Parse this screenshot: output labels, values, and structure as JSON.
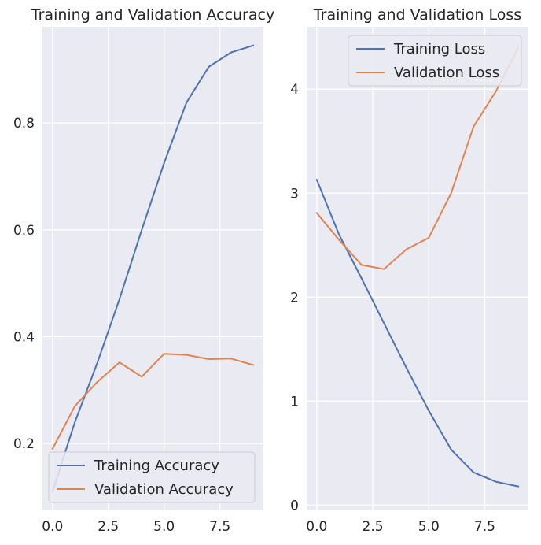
{
  "chart_data": [
    {
      "type": "line",
      "title": "Training and Validation Accuracy",
      "xlabel": "",
      "ylabel": "",
      "xlim": [
        -0.45,
        9.45
      ],
      "ylim": [
        0.075,
        0.98
      ],
      "x_ticks": [
        0.0,
        2.5,
        5.0,
        7.5
      ],
      "x_tick_labels": [
        "0.0",
        "2.5",
        "5.0",
        "7.5"
      ],
      "y_ticks": [
        0.2,
        0.4,
        0.6,
        0.8
      ],
      "y_tick_labels": [
        "0.2",
        "0.4",
        "0.6",
        "0.8"
      ],
      "grid": true,
      "legend_placement": "lower-left",
      "x": [
        0,
        1,
        2,
        3,
        4,
        5,
        6,
        7,
        8,
        9
      ],
      "series": [
        {
          "name": "Training Accuracy",
          "color": "#4c72b0",
          "values": [
            0.11,
            0.24,
            0.35,
            0.47,
            0.6,
            0.725,
            0.838,
            0.905,
            0.932,
            0.945
          ]
        },
        {
          "name": "Validation Accuracy",
          "color": "#dd8452",
          "values": [
            0.19,
            0.27,
            0.315,
            0.352,
            0.325,
            0.368,
            0.366,
            0.358,
            0.359,
            0.347
          ]
        }
      ]
    },
    {
      "type": "line",
      "title": "Training and Validation Loss",
      "xlabel": "",
      "ylabel": "",
      "xlim": [
        -0.45,
        9.45
      ],
      "ylim": [
        -0.05,
        4.6
      ],
      "x_ticks": [
        0.0,
        2.5,
        5.0,
        7.5
      ],
      "x_tick_labels": [
        "0.0",
        "2.5",
        "5.0",
        "7.5"
      ],
      "y_ticks": [
        0,
        1,
        2,
        3,
        4
      ],
      "y_tick_labels": [
        "0",
        "1",
        "2",
        "3",
        "4"
      ],
      "grid": true,
      "legend_placement": "upper-right",
      "x": [
        0,
        1,
        2,
        3,
        4,
        5,
        6,
        7,
        8,
        9
      ],
      "series": [
        {
          "name": "Training Loss",
          "color": "#4c72b0",
          "values": [
            3.13,
            2.6,
            2.18,
            1.75,
            1.32,
            0.91,
            0.535,
            0.315,
            0.225,
            0.18
          ]
        },
        {
          "name": "Validation Loss",
          "color": "#dd8452",
          "values": [
            2.81,
            2.55,
            2.31,
            2.27,
            2.46,
            2.57,
            3.0,
            3.64,
            3.98,
            4.4
          ]
        }
      ]
    }
  ]
}
